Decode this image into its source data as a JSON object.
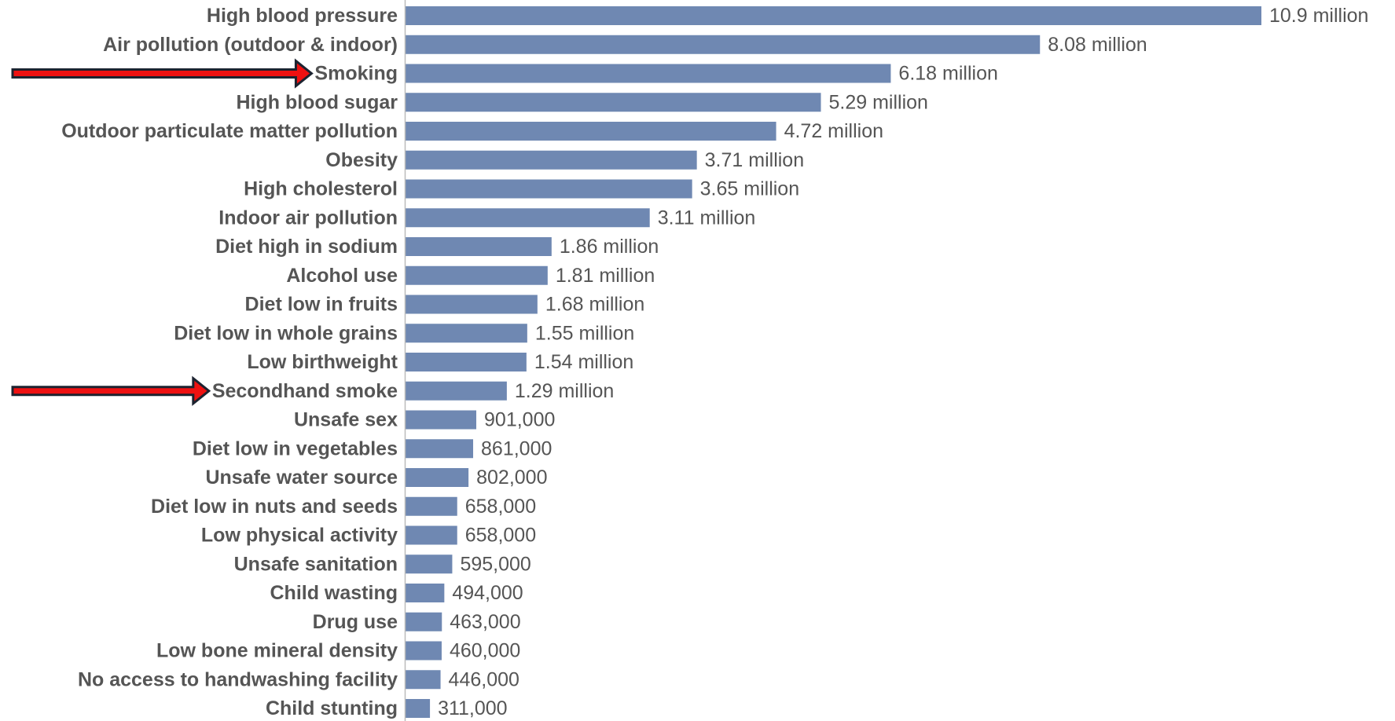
{
  "chart_data": {
    "type": "bar",
    "orientation": "horizontal",
    "categories": [
      "High blood pressure",
      "Air pollution (outdoor & indoor)",
      "Smoking",
      "High blood sugar",
      "Outdoor particulate matter pollution",
      "Obesity",
      "High cholesterol",
      "Indoor air pollution",
      "Diet high in sodium",
      "Alcohol use",
      "Diet low in fruits",
      "Diet low in whole grains",
      "Low birthweight",
      "Secondhand smoke",
      "Unsafe sex",
      "Diet low in vegetables",
      "Unsafe water source",
      "Diet low in nuts and seeds",
      "Low physical activity",
      "Unsafe sanitation",
      "Child wasting",
      "Drug use",
      "Low bone mineral density",
      "No access to handwashing facility",
      "Child stunting"
    ],
    "values": [
      10900000,
      8080000,
      6180000,
      5290000,
      4720000,
      3710000,
      3650000,
      3110000,
      1860000,
      1810000,
      1680000,
      1550000,
      1540000,
      1290000,
      901000,
      861000,
      802000,
      658000,
      658000,
      595000,
      494000,
      463000,
      460000,
      446000,
      311000
    ],
    "value_labels": [
      "10.9 million",
      "8.08 million",
      "6.18 million",
      "5.29 million",
      "4.72 million",
      "3.71 million",
      "3.65 million",
      "3.11 million",
      "1.86 million",
      "1.81 million",
      "1.68 million",
      "1.55 million",
      "1.54 million",
      "1.29 million",
      "901,000",
      "861,000",
      "802,000",
      "658,000",
      "658,000",
      "595,000",
      "494,000",
      "463,000",
      "460,000",
      "446,000",
      "311,000"
    ],
    "highlighted": [
      "Smoking",
      "Secondhand smoke"
    ],
    "xlim": [
      0,
      10900000
    ],
    "grid": false,
    "colors": {
      "bar": "#6f88b2",
      "axis": "#bbbbbb",
      "arrow_fill": "#ee1111",
      "arrow_stroke": "#1c2330",
      "text": "#555555"
    }
  }
}
